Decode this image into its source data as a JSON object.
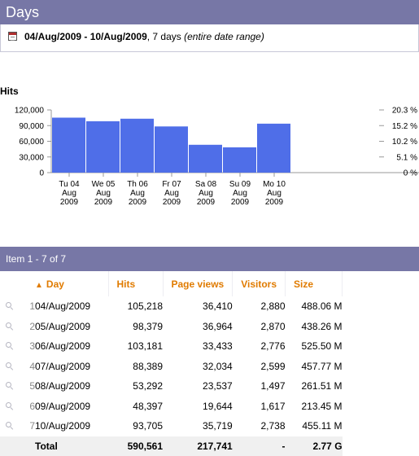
{
  "header": {
    "title": "Days"
  },
  "date_range": {
    "range": "04/Aug/2009 - 10/Aug/2009",
    "days": ", 7 days",
    "note": "(entire date range)"
  },
  "chart_data": {
    "type": "bar",
    "title": "Hits",
    "categories": [
      [
        "Tu 04",
        "Aug",
        "2009"
      ],
      [
        "We 05",
        "Aug",
        "2009"
      ],
      [
        "Th 06",
        "Aug",
        "2009"
      ],
      [
        "Fr 07",
        "Aug",
        "2009"
      ],
      [
        "Sa 08",
        "Aug",
        "2009"
      ],
      [
        "Su 09",
        "Aug",
        "2009"
      ],
      [
        "Mo 10",
        "Aug",
        "2009"
      ]
    ],
    "values": [
      105218,
      98379,
      103181,
      88389,
      53292,
      48397,
      93705
    ],
    "ylim": [
      0,
      120000
    ],
    "left_ticks": [
      {
        "value": 0,
        "label": "0"
      },
      {
        "value": 30000,
        "label": "30,000"
      },
      {
        "value": 60000,
        "label": "60,000"
      },
      {
        "value": 90000,
        "label": "90,000"
      },
      {
        "value": 120000,
        "label": "120,000"
      }
    ],
    "right_ticks": [
      {
        "value": 0,
        "label": "0 %"
      },
      {
        "value": 30000,
        "label": "5.1 %"
      },
      {
        "value": 60000,
        "label": "10.2 %"
      },
      {
        "value": 90000,
        "label": "15.2 %"
      },
      {
        "value": 120000,
        "label": "20.3 %"
      }
    ],
    "bar_color": "#4f6ee8"
  },
  "table": {
    "item_range": "Item 1 - 7 of 7",
    "columns": {
      "day": "Day",
      "hits": "Hits",
      "page_views": "Page views",
      "visitors": "Visitors",
      "size": "Size"
    },
    "rows": [
      {
        "n": "1",
        "day": "04/Aug/2009",
        "hits": "105,218",
        "page_views": "36,410",
        "visitors": "2,880",
        "size": "488.06 M"
      },
      {
        "n": "2",
        "day": "05/Aug/2009",
        "hits": "98,379",
        "page_views": "36,964",
        "visitors": "2,870",
        "size": "438.26 M"
      },
      {
        "n": "3",
        "day": "06/Aug/2009",
        "hits": "103,181",
        "page_views": "33,433",
        "visitors": "2,776",
        "size": "525.50 M"
      },
      {
        "n": "4",
        "day": "07/Aug/2009",
        "hits": "88,389",
        "page_views": "32,034",
        "visitors": "2,599",
        "size": "457.77 M"
      },
      {
        "n": "5",
        "day": "08/Aug/2009",
        "hits": "53,292",
        "page_views": "23,537",
        "visitors": "1,497",
        "size": "261.51 M"
      },
      {
        "n": "6",
        "day": "09/Aug/2009",
        "hits": "48,397",
        "page_views": "19,644",
        "visitors": "1,617",
        "size": "213.45 M"
      },
      {
        "n": "7",
        "day": "10/Aug/2009",
        "hits": "93,705",
        "page_views": "35,719",
        "visitors": "2,738",
        "size": "455.11 M"
      }
    ],
    "total": {
      "label": "Total",
      "hits": "590,561",
      "page_views": "217,741",
      "visitors": "-",
      "size": "2.77 G"
    }
  },
  "icons": {
    "calendar": "calendar-icon",
    "row_detail": "magnifier-icon",
    "sort": "sort-ascending-icon"
  }
}
